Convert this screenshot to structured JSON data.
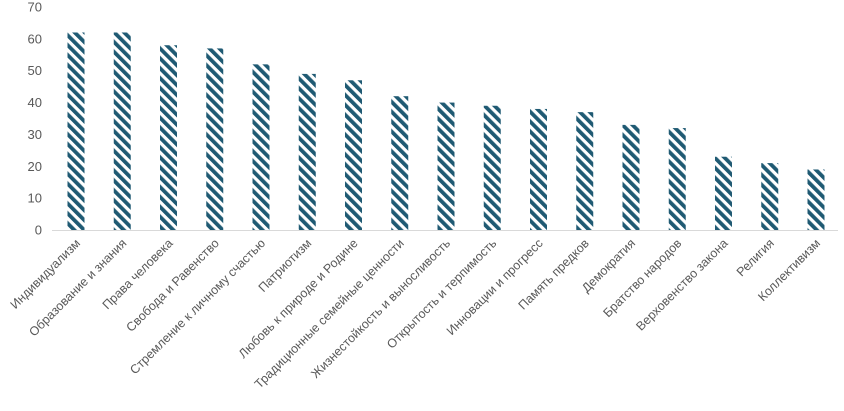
{
  "chart_data": {
    "type": "bar",
    "title": "",
    "xlabel": "",
    "ylabel": "",
    "ylim": [
      0,
      70
    ],
    "yticks": [
      0,
      10,
      20,
      30,
      40,
      50,
      60,
      70
    ],
    "grid": false,
    "legend": "none",
    "bar_color": "#1f5a73",
    "bar_pattern": "diagonal-stripes",
    "categories": [
      "Индивидуализм",
      "Образование и знания",
      "Права человека",
      "Свобода и Равенство",
      "Стремление к личному счастью",
      "Патриотизм",
      "Любовь к природе и Родине",
      "Традиционные семейные ценности",
      "Жизнестойкость и выносливость",
      "Открытость и терпимость",
      "Инновации и прогресс",
      "Память предков",
      "Демократия",
      "Братство народов",
      "Верховенство закона",
      "Религия",
      "Коллективизм"
    ],
    "values": [
      62,
      62,
      58,
      57,
      52,
      49,
      47,
      42,
      40,
      39,
      38,
      37,
      33,
      32,
      23,
      21,
      19
    ]
  }
}
